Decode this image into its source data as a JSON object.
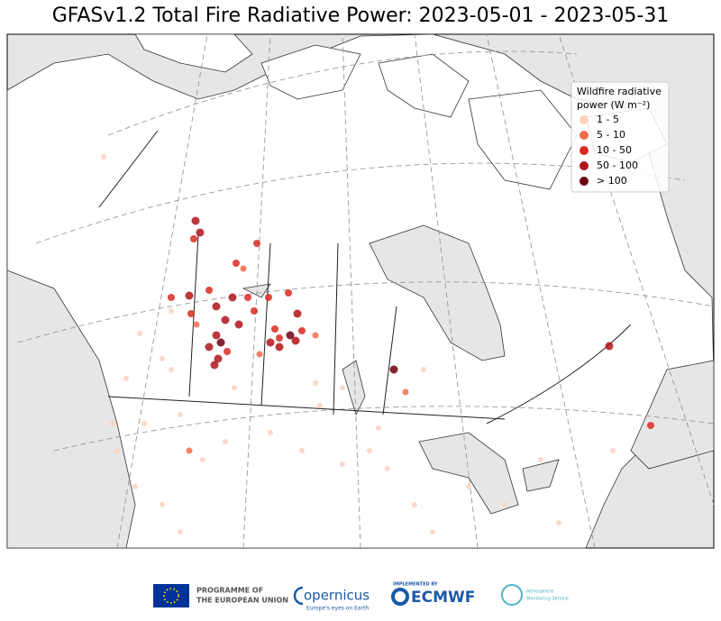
{
  "header": {
    "title": "GFASv1.2 Total Fire Radiative Power: 2023-05-01 - 2023-05-31"
  },
  "legend": {
    "title_lines": [
      "Wildfire radiative",
      "power (W m⁻²)"
    ],
    "entries": [
      {
        "label": "1 - 5",
        "color": "#fcd1bd"
      },
      {
        "label": "5 - 10",
        "color": "#f26a4b"
      },
      {
        "label": "10 - 50",
        "color": "#d92a22"
      },
      {
        "label": "50 - 100",
        "color": "#b0141b"
      },
      {
        "label": "> 100",
        "color": "#6b0010"
      }
    ]
  },
  "footer": {
    "eu_lines": [
      "PROGRAMME OF",
      "THE EUROPEAN UNION"
    ],
    "copernicus": "opernicus",
    "copernicus_tagline": "Europe's eyes on Earth",
    "implemented_by": "IMPLEMENTED BY",
    "ecmwf": "ECMWF",
    "cams_lines": [
      "Atmosphere",
      "Monitoring Service"
    ]
  }
}
